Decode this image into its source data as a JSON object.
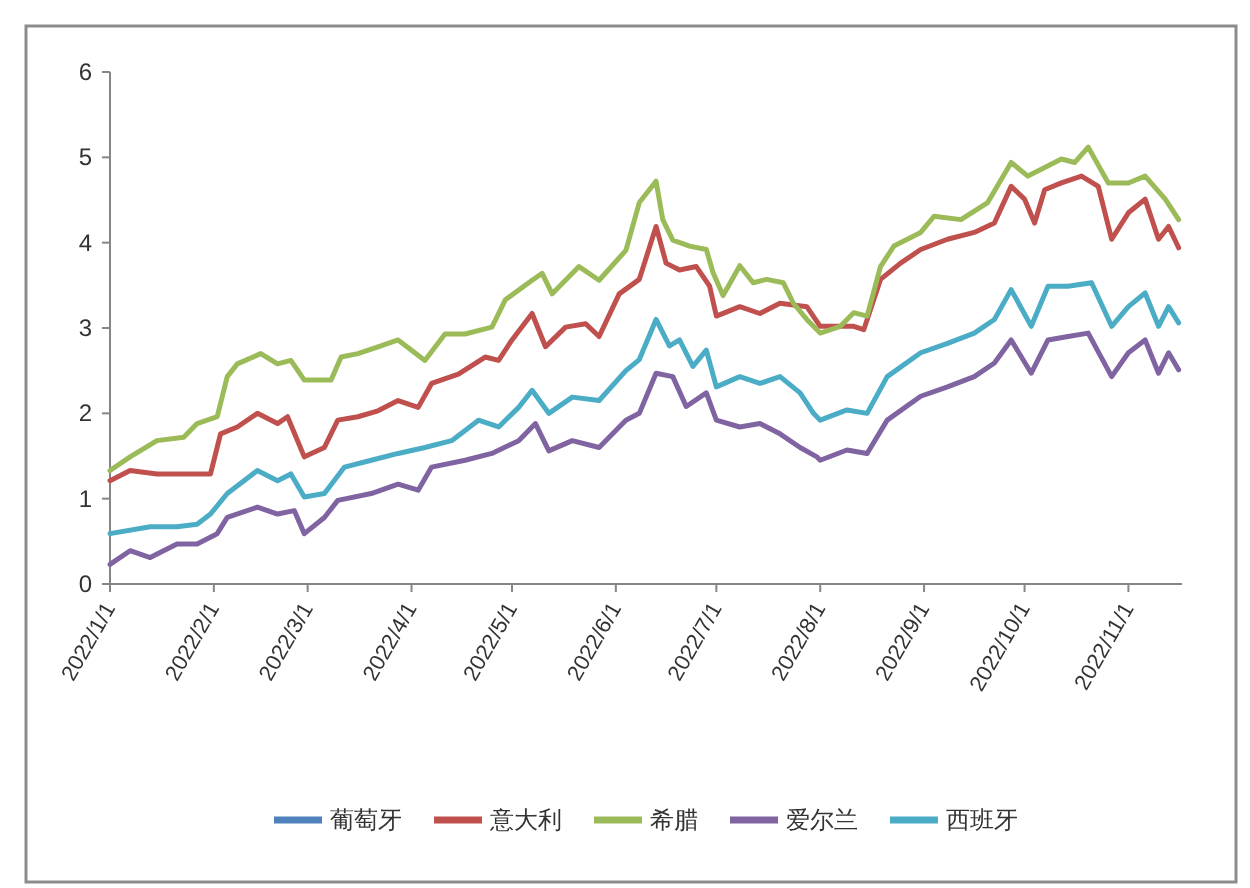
{
  "chart_data": {
    "type": "line",
    "xlim": [
      "2022-01-01",
      "2022-11-17"
    ],
    "xticks": [
      {
        "value": "2022-01-01",
        "label": "2022/1/1"
      },
      {
        "value": "2022-02-01",
        "label": "2022/2/1"
      },
      {
        "value": "2022-03-01",
        "label": "2022/3/1"
      },
      {
        "value": "2022-04-01",
        "label": "2022/4/1"
      },
      {
        "value": "2022-05-01",
        "label": "2022/5/1"
      },
      {
        "value": "2022-06-01",
        "label": "2022/6/1"
      },
      {
        "value": "2022-07-01",
        "label": "2022/7/1"
      },
      {
        "value": "2022-08-01",
        "label": "2022/8/1"
      },
      {
        "value": "2022-09-01",
        "label": "2022/9/1"
      },
      {
        "value": "2022-10-01",
        "label": "2022/10/1"
      },
      {
        "value": "2022-11-01",
        "label": "2022/11/1"
      }
    ],
    "ylim": [
      0,
      6
    ],
    "yticks": [
      0,
      1,
      2,
      3,
      4,
      5,
      6
    ],
    "legend": "bottom",
    "series": [
      {
        "name": "葡萄牙",
        "color": "#4f81bd"
      },
      {
        "name": "意大利",
        "color": "#c0504d",
        "x": [
          "2022-01-01",
          "2022-01-07",
          "2022-01-15",
          "2022-01-23",
          "2022-01-31",
          "2022-02-03",
          "2022-02-08",
          "2022-02-14",
          "2022-02-20",
          "2022-02-23",
          "2022-02-28",
          "2022-03-06",
          "2022-03-10",
          "2022-03-16",
          "2022-03-22",
          "2022-03-28",
          "2022-04-03",
          "2022-04-07",
          "2022-04-15",
          "2022-04-23",
          "2022-04-27",
          "2022-05-01",
          "2022-05-07",
          "2022-05-11",
          "2022-05-17",
          "2022-05-23",
          "2022-05-27",
          "2022-06-02",
          "2022-06-08",
          "2022-06-13",
          "2022-06-16",
          "2022-06-20",
          "2022-06-25",
          "2022-06-29",
          "2022-07-01",
          "2022-07-08",
          "2022-07-14",
          "2022-07-20",
          "2022-07-28",
          "2022-08-01",
          "2022-08-03",
          "2022-08-11",
          "2022-08-14",
          "2022-08-19",
          "2022-08-25",
          "2022-08-31",
          "2022-09-08",
          "2022-09-16",
          "2022-09-22",
          "2022-09-27",
          "2022-10-01",
          "2022-10-04",
          "2022-10-07",
          "2022-10-12",
          "2022-10-18",
          "2022-10-23",
          "2022-10-27",
          "2022-11-01",
          "2022-11-06",
          "2022-11-10",
          "2022-11-13",
          "2022-11-16"
        ],
        "values": [
          1.21,
          1.33,
          1.29,
          1.29,
          1.29,
          1.76,
          1.84,
          2.0,
          1.88,
          1.96,
          1.49,
          1.6,
          1.92,
          1.96,
          2.03,
          2.15,
          2.07,
          2.35,
          2.46,
          2.66,
          2.62,
          2.86,
          3.17,
          2.78,
          3.01,
          3.05,
          2.9,
          3.4,
          3.57,
          4.19,
          3.76,
          3.68,
          3.72,
          3.49,
          3.14,
          3.25,
          3.17,
          3.29,
          3.25,
          3.02,
          3.02,
          3.02,
          2.98,
          3.57,
          3.76,
          3.92,
          4.04,
          4.12,
          4.23,
          4.66,
          4.51,
          4.23,
          4.62,
          4.7,
          4.78,
          4.66,
          4.04,
          4.35,
          4.51,
          4.04,
          4.19,
          3.94
        ]
      },
      {
        "name": "希腊",
        "color": "#9bbb59",
        "x": [
          "2022-01-01",
          "2022-01-07",
          "2022-01-15",
          "2022-01-23",
          "2022-01-27",
          "2022-02-02",
          "2022-02-05",
          "2022-02-08",
          "2022-02-15",
          "2022-02-20",
          "2022-02-24",
          "2022-02-28",
          "2022-03-08",
          "2022-03-11",
          "2022-03-16",
          "2022-03-22",
          "2022-03-28",
          "2022-04-05",
          "2022-04-11",
          "2022-04-17",
          "2022-04-25",
          "2022-04-29",
          "2022-05-07",
          "2022-05-10",
          "2022-05-13",
          "2022-05-21",
          "2022-05-27",
          "2022-06-04",
          "2022-06-08",
          "2022-06-13",
          "2022-06-15",
          "2022-06-18",
          "2022-06-23",
          "2022-06-28",
          "2022-06-30",
          "2022-07-03",
          "2022-07-08",
          "2022-07-12",
          "2022-07-16",
          "2022-07-21",
          "2022-07-24",
          "2022-07-28",
          "2022-08-01",
          "2022-08-07",
          "2022-08-11",
          "2022-08-15",
          "2022-08-19",
          "2022-08-23",
          "2022-08-31",
          "2022-09-04",
          "2022-09-12",
          "2022-09-20",
          "2022-09-27",
          "2022-10-02",
          "2022-10-06",
          "2022-10-12",
          "2022-10-16",
          "2022-10-20",
          "2022-10-26",
          "2022-11-01",
          "2022-11-06",
          "2022-11-12",
          "2022-11-16"
        ],
        "values": [
          1.33,
          1.49,
          1.68,
          1.72,
          1.88,
          1.96,
          2.43,
          2.58,
          2.7,
          2.58,
          2.62,
          2.39,
          2.39,
          2.66,
          2.7,
          2.78,
          2.86,
          2.62,
          2.93,
          2.93,
          3.01,
          3.33,
          3.56,
          3.64,
          3.4,
          3.72,
          3.56,
          3.91,
          4.47,
          4.72,
          4.27,
          4.03,
          3.96,
          3.92,
          3.65,
          3.38,
          3.73,
          3.53,
          3.57,
          3.53,
          3.29,
          3.1,
          2.94,
          3.02,
          3.18,
          3.14,
          3.72,
          3.96,
          4.12,
          4.31,
          4.27,
          4.47,
          4.94,
          4.78,
          4.86,
          4.98,
          4.94,
          5.12,
          4.7,
          4.7,
          4.78,
          4.51,
          4.27
        ]
      },
      {
        "name": "爱尔兰",
        "color": "#8064a2",
        "x": [
          "2022-01-01",
          "2022-01-07",
          "2022-01-13",
          "2022-01-21",
          "2022-01-27",
          "2022-02-02",
          "2022-02-05",
          "2022-02-14",
          "2022-02-20",
          "2022-02-25",
          "2022-02-28",
          "2022-03-06",
          "2022-03-10",
          "2022-03-20",
          "2022-03-28",
          "2022-04-03",
          "2022-04-07",
          "2022-04-17",
          "2022-04-25",
          "2022-05-03",
          "2022-05-08",
          "2022-05-12",
          "2022-05-19",
          "2022-05-27",
          "2022-06-04",
          "2022-06-08",
          "2022-06-13",
          "2022-06-18",
          "2022-06-22",
          "2022-06-28",
          "2022-07-01",
          "2022-07-08",
          "2022-07-14",
          "2022-07-20",
          "2022-07-26",
          "2022-07-31",
          "2022-08-01",
          "2022-08-09",
          "2022-08-15",
          "2022-08-21",
          "2022-08-31",
          "2022-09-08",
          "2022-09-16",
          "2022-09-22",
          "2022-09-27",
          "2022-10-03",
          "2022-10-08",
          "2022-10-14",
          "2022-10-20",
          "2022-10-27",
          "2022-11-01",
          "2022-11-06",
          "2022-11-10",
          "2022-11-13",
          "2022-11-16"
        ],
        "values": [
          0.23,
          0.39,
          0.31,
          0.47,
          0.47,
          0.59,
          0.78,
          0.9,
          0.82,
          0.86,
          0.59,
          0.78,
          0.98,
          1.06,
          1.17,
          1.1,
          1.37,
          1.45,
          1.53,
          1.68,
          1.88,
          1.56,
          1.68,
          1.6,
          1.92,
          2.0,
          2.47,
          2.43,
          2.08,
          2.24,
          1.92,
          1.84,
          1.88,
          1.76,
          1.6,
          1.49,
          1.45,
          1.57,
          1.53,
          1.92,
          2.2,
          2.31,
          2.43,
          2.59,
          2.86,
          2.47,
          2.86,
          2.9,
          2.94,
          2.43,
          2.71,
          2.86,
          2.47,
          2.71,
          2.51
        ]
      },
      {
        "name": "西班牙",
        "color": "#4bacc6",
        "x": [
          "2022-01-01",
          "2022-01-13",
          "2022-01-21",
          "2022-01-27",
          "2022-01-31",
          "2022-02-05",
          "2022-02-14",
          "2022-02-20",
          "2022-02-24",
          "2022-02-28",
          "2022-03-06",
          "2022-03-12",
          "2022-03-20",
          "2022-03-28",
          "2022-04-05",
          "2022-04-13",
          "2022-04-21",
          "2022-04-27",
          "2022-05-03",
          "2022-05-07",
          "2022-05-12",
          "2022-05-19",
          "2022-05-27",
          "2022-06-04",
          "2022-06-08",
          "2022-06-13",
          "2022-06-17",
          "2022-06-20",
          "2022-06-24",
          "2022-06-28",
          "2022-07-01",
          "2022-07-08",
          "2022-07-14",
          "2022-07-20",
          "2022-07-26",
          "2022-07-30",
          "2022-08-01",
          "2022-08-09",
          "2022-08-15",
          "2022-08-21",
          "2022-08-31",
          "2022-09-08",
          "2022-09-16",
          "2022-09-22",
          "2022-09-27",
          "2022-10-03",
          "2022-10-08",
          "2022-10-14",
          "2022-10-21",
          "2022-10-27",
          "2022-11-01",
          "2022-11-06",
          "2022-11-10",
          "2022-11-13",
          "2022-11-16"
        ],
        "values": [
          0.59,
          0.67,
          0.67,
          0.7,
          0.82,
          1.06,
          1.33,
          1.21,
          1.29,
          1.02,
          1.06,
          1.37,
          1.45,
          1.53,
          1.6,
          1.68,
          1.92,
          1.84,
          2.07,
          2.27,
          2.0,
          2.19,
          2.15,
          2.5,
          2.63,
          3.1,
          2.79,
          2.86,
          2.55,
          2.74,
          2.31,
          2.43,
          2.35,
          2.43,
          2.24,
          2.0,
          1.92,
          2.04,
          2.0,
          2.43,
          2.71,
          2.82,
          2.94,
          3.1,
          3.45,
          3.02,
          3.49,
          3.49,
          3.53,
          3.02,
          3.25,
          3.41,
          3.02,
          3.25,
          3.06
        ]
      }
    ]
  }
}
